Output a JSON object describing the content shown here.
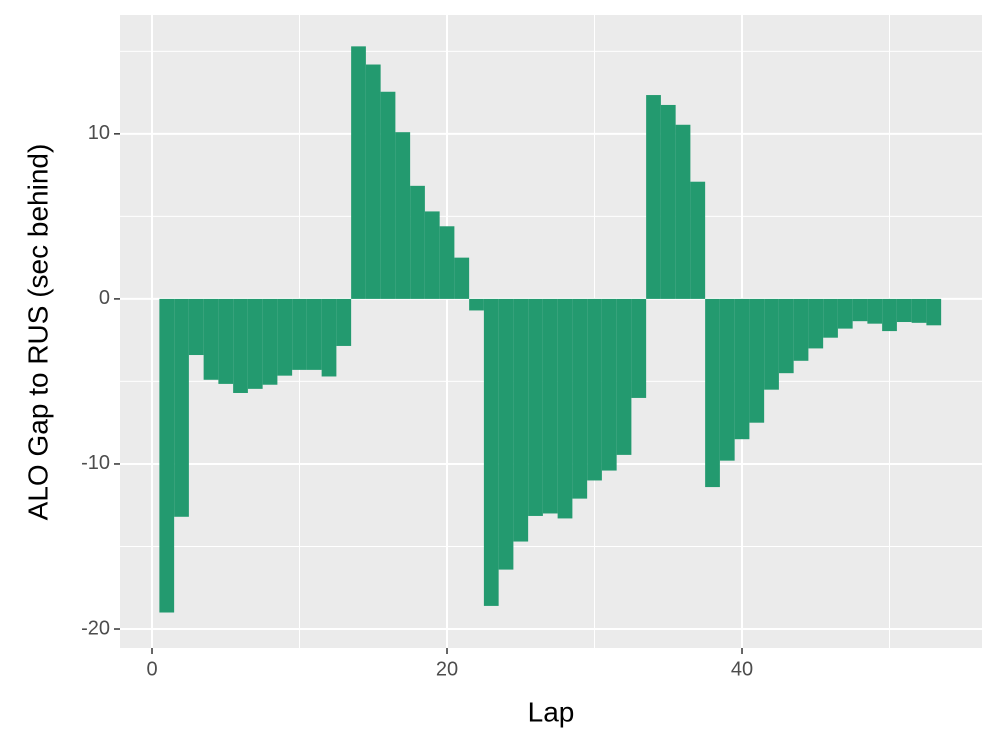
{
  "chart_data": {
    "type": "bar",
    "x_label": "Lap",
    "y_label": "ALO Gap to RUS (sec behind)",
    "x": [
      1,
      2,
      3,
      4,
      5,
      6,
      7,
      8,
      9,
      10,
      11,
      12,
      13,
      14,
      15,
      16,
      17,
      18,
      19,
      20,
      21,
      22,
      23,
      24,
      25,
      26,
      27,
      28,
      29,
      30,
      31,
      32,
      33,
      34,
      35,
      36,
      37,
      38,
      39,
      40,
      41,
      42,
      43,
      44,
      45,
      46,
      47,
      48,
      49,
      50,
      51,
      52,
      53
    ],
    "values": [
      -19.0,
      -13.2,
      -3.4,
      -4.9,
      -5.15,
      -5.7,
      -5.45,
      -5.2,
      -4.65,
      -4.3,
      -4.3,
      -4.7,
      -2.85,
      15.3,
      14.2,
      12.55,
      10.1,
      6.85,
      5.3,
      4.4,
      2.5,
      -0.7,
      -18.6,
      -16.4,
      -14.7,
      -13.15,
      -13.0,
      -13.3,
      -12.1,
      -11.0,
      -10.4,
      -9.45,
      -6.0,
      12.35,
      11.75,
      10.55,
      7.1,
      -11.4,
      -9.8,
      -8.5,
      -7.5,
      -5.5,
      -4.5,
      -3.75,
      -3.0,
      -2.35,
      -1.8,
      -1.35,
      -1.5,
      -1.95,
      -1.4,
      -1.45,
      -1.6
    ],
    "color": "#239a6f",
    "xlim": [
      -2.17,
      56.27
    ],
    "xticks": [
      0,
      20,
      40
    ],
    "ylim": [
      -21.15,
      17.2
    ],
    "yticks": [
      -20,
      -10,
      0,
      10
    ],
    "grid": true
  }
}
